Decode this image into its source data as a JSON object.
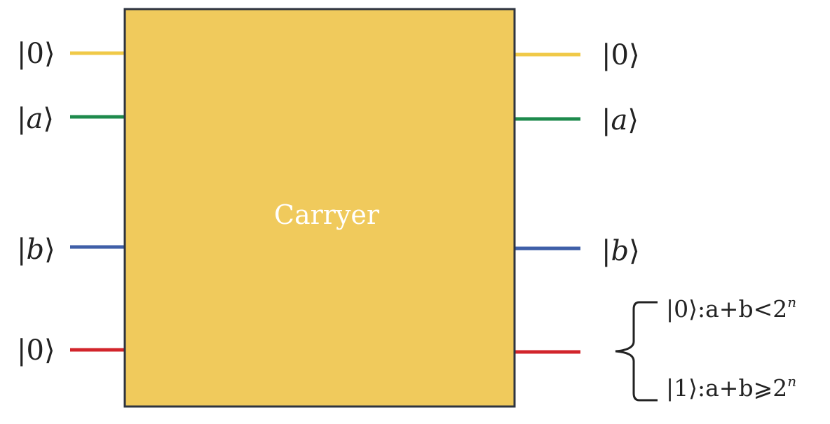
{
  "gate": {
    "label": "Carryer",
    "fill_color": "#F0CA5C",
    "border_color": "#2E3440"
  },
  "inputs": [
    {
      "state": "0",
      "color": "#F0C948"
    },
    {
      "state": "a",
      "color": "#1E8A4C"
    },
    {
      "state": "b",
      "color": "#3F5FA8"
    },
    {
      "state": "0",
      "color": "#D2242B"
    }
  ],
  "outputs": [
    {
      "state": "0",
      "color": "#F0C948"
    },
    {
      "state": "a",
      "color": "#1E8A4C"
    },
    {
      "state": "b",
      "color": "#3F5FA8"
    },
    {
      "state": "",
      "color": "#D2242B"
    }
  ],
  "carry_conditions": [
    {
      "state": "0",
      "expr": ":a+b<2",
      "exp": "n"
    },
    {
      "state": "1",
      "expr": ":a+b⩾2",
      "exp": "n"
    }
  ]
}
